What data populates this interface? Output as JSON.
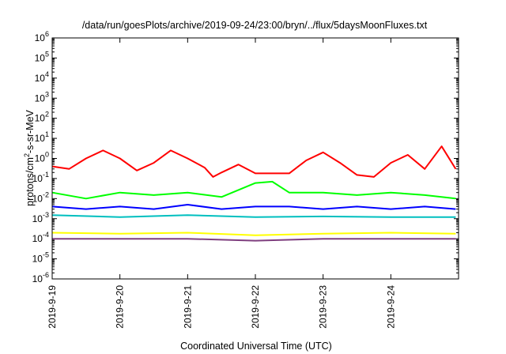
{
  "chart_data": {
    "type": "line",
    "title": "/data/run/goesPlots/archive/2019-09-24/23:00/bryn/../flux/5daysMoonFluxes.txt",
    "xlabel": "Coordinated Universal Time (UTC)",
    "ylabel_parts": [
      "protons/cm",
      "2",
      "-s-sr-MeV"
    ],
    "y_scale": "log",
    "ylim": [
      1e-06,
      1000000.0
    ],
    "y_ticks": [
      {
        "mantissa": "10",
        "exp": "-6",
        "value": 1e-06
      },
      {
        "mantissa": "10",
        "exp": "-5",
        "value": 1e-05
      },
      {
        "mantissa": "10",
        "exp": "-4",
        "value": 0.0001
      },
      {
        "mantissa": "10",
        "exp": "-3",
        "value": 0.001
      },
      {
        "mantissa": "10",
        "exp": "-2",
        "value": 0.01
      },
      {
        "mantissa": "10",
        "exp": "-1",
        "value": 0.1
      },
      {
        "mantissa": "10",
        "exp": "0",
        "value": 1
      },
      {
        "mantissa": "10",
        "exp": "1",
        "value": 10
      },
      {
        "mantissa": "10",
        "exp": "2",
        "value": 100
      },
      {
        "mantissa": "10",
        "exp": "3",
        "value": 1000
      },
      {
        "mantissa": "10",
        "exp": "4",
        "value": 10000
      },
      {
        "mantissa": "10",
        "exp": "5",
        "value": 100000
      },
      {
        "mantissa": "10",
        "exp": "6",
        "value": 1000000
      }
    ],
    "xlim": [
      "2019-09-19",
      "2019-09-25"
    ],
    "x_ticks": [
      "2019-9-19",
      "2019-9-20",
      "2019-9-21",
      "2019-9-22",
      "2019-9-23",
      "2019-9-24"
    ],
    "x_tick_dates": [
      "2019-09-19",
      "2019-09-20",
      "2019-09-21",
      "2019-09-22",
      "2019-09-23",
      "2019-09-24"
    ],
    "grid": false,
    "legend": "none",
    "series": [
      {
        "color": "#ff0000",
        "x": [
          "2019-09-19T00:00",
          "2019-09-19T06:00",
          "2019-09-19T12:00",
          "2019-09-19T18:00",
          "2019-09-20T00:00",
          "2019-09-20T06:00",
          "2019-09-20T12:00",
          "2019-09-20T18:00",
          "2019-09-21T00:00",
          "2019-09-21T06:00",
          "2019-09-21T09:00",
          "2019-09-21T12:00",
          "2019-09-21T18:00",
          "2019-09-22T00:00",
          "2019-09-22T06:00",
          "2019-09-22T12:00",
          "2019-09-22T18:00",
          "2019-09-23T00:00",
          "2019-09-23T06:00",
          "2019-09-23T12:00",
          "2019-09-23T18:00",
          "2019-09-24T00:00",
          "2019-09-24T06:00",
          "2019-09-24T12:00",
          "2019-09-24T18:00",
          "2019-09-24T23:00"
        ],
        "y": [
          0.4,
          0.3,
          1.0,
          2.5,
          1.0,
          0.25,
          0.6,
          2.5,
          1.0,
          0.35,
          0.12,
          0.2,
          0.5,
          0.18,
          0.18,
          0.18,
          0.8,
          2.0,
          0.6,
          0.15,
          0.12,
          0.6,
          1.5,
          0.3,
          4.0,
          0.3
        ]
      },
      {
        "color": "#00ff00",
        "x": [
          "2019-09-19T00:00",
          "2019-09-19T12:00",
          "2019-09-20T00:00",
          "2019-09-20T12:00",
          "2019-09-21T00:00",
          "2019-09-21T12:00",
          "2019-09-22T00:00",
          "2019-09-22T06:00",
          "2019-09-22T12:00",
          "2019-09-23T00:00",
          "2019-09-23T12:00",
          "2019-09-24T00:00",
          "2019-09-24T12:00",
          "2019-09-24T23:00"
        ],
        "y": [
          0.02,
          0.01,
          0.02,
          0.015,
          0.02,
          0.012,
          0.06,
          0.07,
          0.02,
          0.02,
          0.015,
          0.02,
          0.015,
          0.01
        ]
      },
      {
        "color": "#0000ff",
        "x": [
          "2019-09-19T00:00",
          "2019-09-19T12:00",
          "2019-09-20T00:00",
          "2019-09-20T12:00",
          "2019-09-21T00:00",
          "2019-09-21T12:00",
          "2019-09-22T00:00",
          "2019-09-22T12:00",
          "2019-09-23T00:00",
          "2019-09-23T12:00",
          "2019-09-24T00:00",
          "2019-09-24T12:00",
          "2019-09-24T23:00"
        ],
        "y": [
          0.004,
          0.003,
          0.004,
          0.003,
          0.005,
          0.003,
          0.004,
          0.004,
          0.003,
          0.004,
          0.003,
          0.004,
          0.003
        ]
      },
      {
        "color": "#00bfbf",
        "x": [
          "2019-09-19T00:00",
          "2019-09-20T00:00",
          "2019-09-21T00:00",
          "2019-09-22T00:00",
          "2019-09-23T00:00",
          "2019-09-24T00:00",
          "2019-09-24T23:00"
        ],
        "y": [
          0.0015,
          0.0012,
          0.0015,
          0.0012,
          0.0013,
          0.0012,
          0.0012
        ]
      },
      {
        "color": "#ffff00",
        "x": [
          "2019-09-19T00:00",
          "2019-09-20T00:00",
          "2019-09-21T00:00",
          "2019-09-22T00:00",
          "2019-09-23T00:00",
          "2019-09-24T00:00",
          "2019-09-24T23:00"
        ],
        "y": [
          0.0002,
          0.00018,
          0.0002,
          0.00015,
          0.00018,
          0.0002,
          0.00018
        ]
      },
      {
        "color": "#7f3f7f",
        "x": [
          "2019-09-19T00:00",
          "2019-09-20T00:00",
          "2019-09-21T00:00",
          "2019-09-22T00:00",
          "2019-09-23T00:00",
          "2019-09-24T00:00",
          "2019-09-24T23:00"
        ],
        "y": [
          0.0001,
          0.0001,
          0.0001,
          8e-05,
          0.0001,
          0.0001,
          0.0001
        ]
      }
    ]
  }
}
